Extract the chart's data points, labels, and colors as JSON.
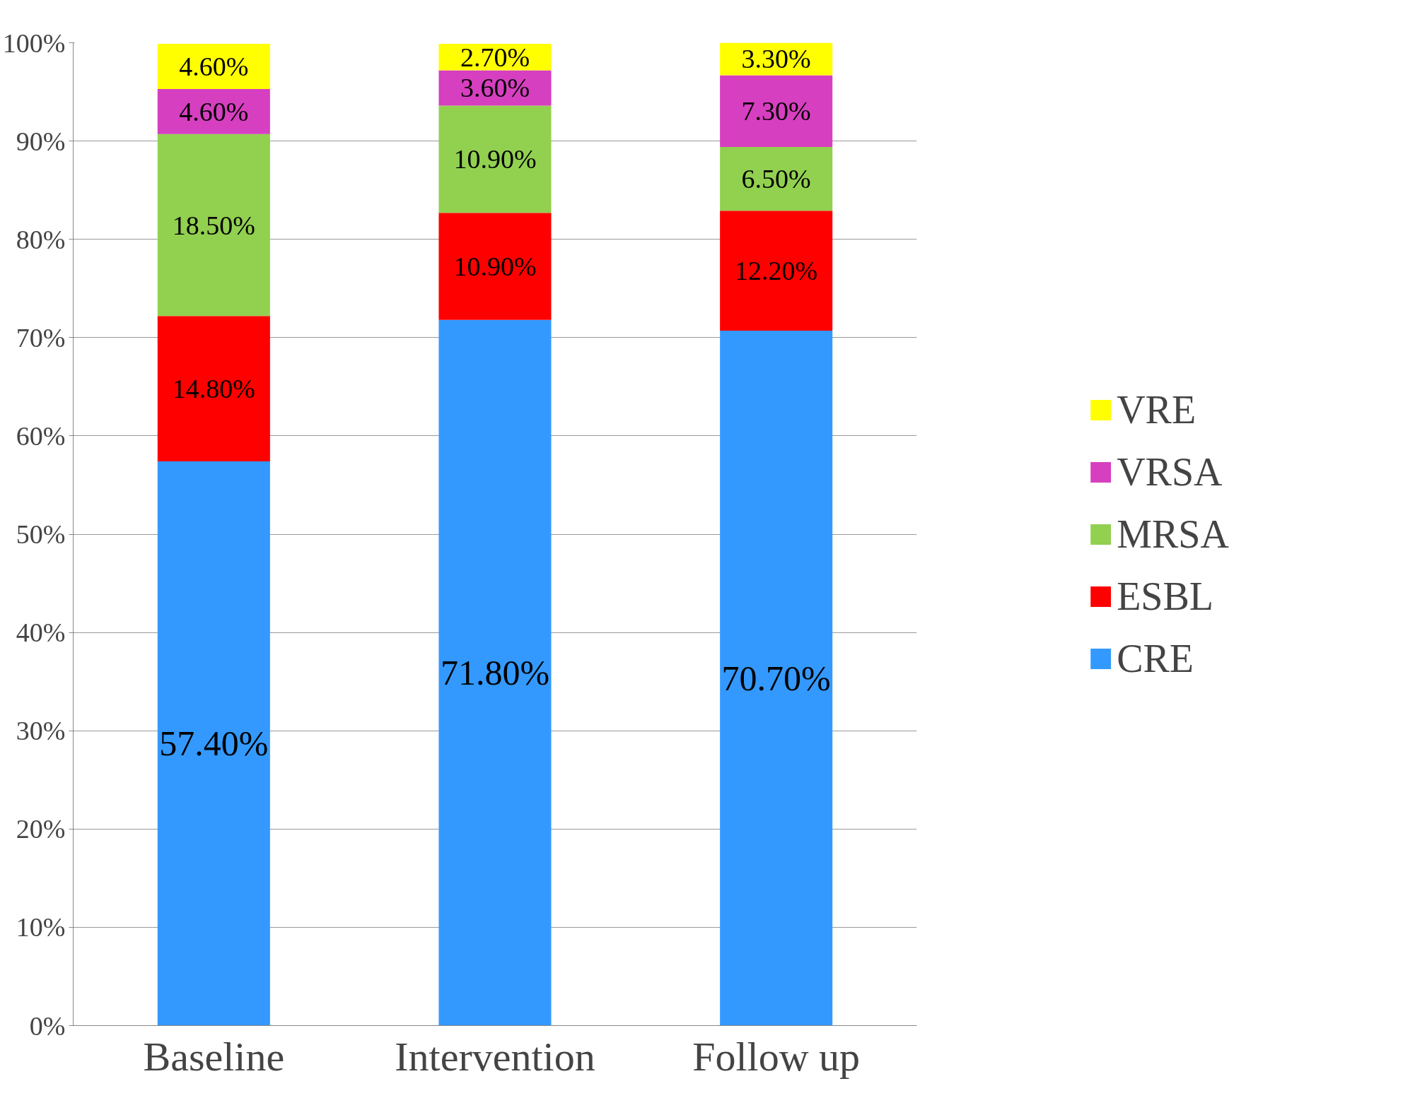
{
  "chart_data": {
    "type": "bar",
    "stacked": true,
    "categories": [
      "Baseline",
      "Intervention",
      "Follow up"
    ],
    "series": [
      {
        "name": "CRE",
        "color": "#3399ff",
        "values": [
          57.4,
          71.8,
          70.7
        ],
        "value_labels": [
          "57.40%",
          "71.80%",
          "70.70%"
        ]
      },
      {
        "name": "ESBL",
        "color": "#ff0000",
        "values": [
          14.8,
          10.9,
          12.2
        ],
        "value_labels": [
          "14.80%",
          "10.90%",
          "12.20%"
        ]
      },
      {
        "name": "MRSA",
        "color": "#92d050",
        "values": [
          18.5,
          10.9,
          6.5
        ],
        "value_labels": [
          "18.50%",
          "10.90%",
          "6.50%"
        ]
      },
      {
        "name": "VRSA",
        "color": "#d63fbf",
        "values": [
          4.6,
          3.6,
          7.3
        ],
        "value_labels": [
          "4.60%",
          "3.60%",
          "7.30%"
        ]
      },
      {
        "name": "VRE",
        "color": "#ffff00",
        "values": [
          4.6,
          2.7,
          3.3
        ],
        "value_labels": [
          "4.60%",
          "2.70%",
          "3.30%"
        ]
      }
    ],
    "ylim": [
      0,
      100
    ],
    "yticks": [
      {
        "value": 0,
        "label": "0%"
      },
      {
        "value": 10,
        "label": "10%"
      },
      {
        "value": 20,
        "label": "20%"
      },
      {
        "value": 30,
        "label": "30%"
      },
      {
        "value": 40,
        "label": "40%"
      },
      {
        "value": 50,
        "label": "50%"
      },
      {
        "value": 60,
        "label": "60%"
      },
      {
        "value": 70,
        "label": "70%"
      },
      {
        "value": 80,
        "label": "80%"
      },
      {
        "value": 90,
        "label": "90%"
      },
      {
        "value": 100,
        "label": "100%"
      }
    ],
    "grid": "y",
    "legend": "right"
  }
}
